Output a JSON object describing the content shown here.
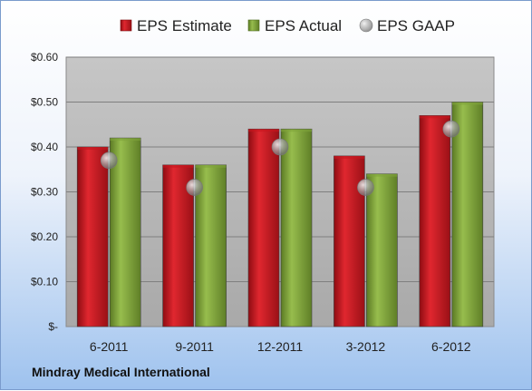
{
  "colors": {
    "estimate": "#c8161e",
    "actual": "#7fa33a",
    "gaap": "#a8a8a8",
    "plot_bg": "#bfbfbf"
  },
  "company_name": "Mindray Medical International",
  "chart_data": {
    "type": "bar",
    "categories": [
      "6-2011",
      "9-2011",
      "12-2011",
      "3-2012",
      "6-2012"
    ],
    "series": [
      {
        "name": "EPS Estimate",
        "values": [
          0.4,
          0.36,
          0.44,
          0.38,
          0.47
        ]
      },
      {
        "name": "EPS Actual",
        "values": [
          0.42,
          0.36,
          0.44,
          0.34,
          0.5
        ]
      },
      {
        "name": "EPS GAAP",
        "values": [
          0.37,
          0.31,
          0.4,
          0.31,
          0.44
        ]
      }
    ],
    "ylim": [
      0,
      0.6
    ],
    "yticks": [
      0,
      0.1,
      0.2,
      0.3,
      0.4,
      0.5,
      0.6
    ],
    "ytick_labels": [
      "$-",
      "$0.10",
      "$0.20",
      "$0.30",
      "$0.40",
      "$0.50",
      "$0.60"
    ],
    "grid": true,
    "legend_position": "top"
  }
}
